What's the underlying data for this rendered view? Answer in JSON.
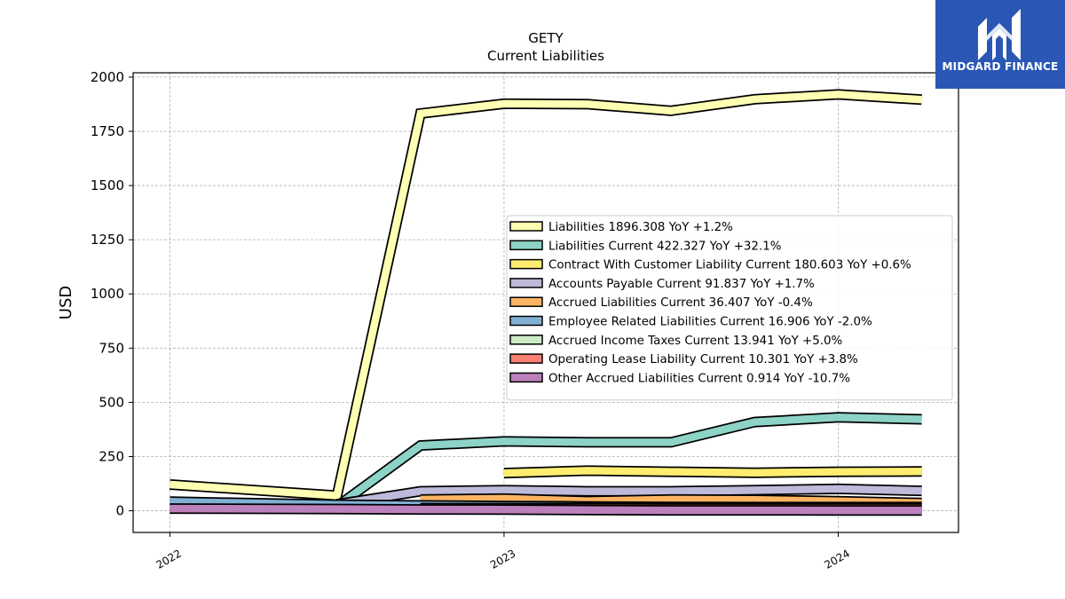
{
  "chart_data": {
    "type": "line",
    "title": "GETY",
    "subtitle": "Current  Liabilities",
    "ylabel": "USD",
    "xlabel": "",
    "ylim": [
      -100,
      2020
    ],
    "xlim": [
      2021.89,
      2024.36
    ],
    "yticks": [
      0,
      250,
      500,
      750,
      1000,
      1250,
      1500,
      1750,
      2000
    ],
    "xticks": [
      2022,
      2023,
      2024
    ],
    "xtick_labels": [
      "2022",
      "2023",
      "2024"
    ],
    "grid": true,
    "legend_placement": "center-right",
    "series": [
      {
        "name": "Liabilities  1896.308 YoY +1.2%",
        "color": "#ffffb3",
        "x": [
          2022.0,
          2022.5,
          2022.75,
          2023.0,
          2023.25,
          2023.5,
          2023.75,
          2024.0,
          2024.25
        ],
        "values": [
          121,
          70,
          1832,
          1877,
          1875,
          1845,
          1898,
          1920,
          1896
        ]
      },
      {
        "name": "Liabilities Current  422.327 YoY +32.1%",
        "color": "#8dd3c7",
        "x": [
          2022.0,
          2022.5,
          2022.75,
          2023.0,
          2023.25,
          2023.5,
          2023.75,
          2024.0,
          2024.25
        ],
        "values": [
          null,
          20,
          301,
          320,
          316,
          316,
          409,
          431,
          422
        ]
      },
      {
        "name": "Contract With Customer Liability Current  180.603 YoY +0.6%",
        "color": "#ffed6f",
        "x": [
          2023.0,
          2023.25,
          2023.5,
          2023.75,
          2024.0,
          2024.25
        ],
        "values": [
          174,
          185,
          180,
          175,
          180,
          181
        ]
      },
      {
        "name": "Accounts Payable Current  91.837 YoY +1.7%",
        "color": "#bebada",
        "x": [
          2022.0,
          2022.5,
          2022.75,
          2023.0,
          2023.25,
          2023.5,
          2023.75,
          2024.0,
          2024.25
        ],
        "values": [
          null,
          30,
          90,
          95,
          90,
          90,
          95,
          101,
          92
        ]
      },
      {
        "name": "Accrued Liabilities Current  36.407 YoY -0.4%",
        "color": "#fdb462",
        "x": [
          2022.75,
          2023.0,
          2023.25,
          2023.5,
          2023.75,
          2024.0,
          2024.25
        ],
        "values": [
          52,
          56,
          45,
          52,
          50,
          44,
          36
        ]
      },
      {
        "name": "Employee Related Liabilities Current  16.906 YoY -2.0%",
        "color": "#80b1d3",
        "x": [
          2022.0,
          2022.5,
          2022.75,
          2023.0,
          2023.25,
          2023.5,
          2023.75,
          2024.0,
          2024.25
        ],
        "values": [
          42,
          28,
          25,
          22,
          20,
          18,
          17,
          17,
          17
        ]
      },
      {
        "name": "Accrued Income Taxes Current  13.941 YoY +5.0%",
        "color": "#ccebc5",
        "x": [
          2022.75,
          2023.0,
          2023.25,
          2023.5,
          2023.75,
          2024.0,
          2024.25
        ],
        "values": [
          8,
          12,
          13,
          14,
          13,
          13,
          14
        ]
      },
      {
        "name": "Operating Lease Liability Current  10.301 YoY +3.8%",
        "color": "#fb8072",
        "x": [
          2022.75,
          2023.0,
          2023.25,
          2023.5,
          2023.75,
          2024.0,
          2024.25
        ],
        "values": [
          12,
          12,
          11,
          10,
          10,
          10,
          10
        ]
      },
      {
        "name": "Other Accrued Liabilities Current  0.914 YoY -10.7%",
        "color": "#bc80bd",
        "x": [
          2022.0,
          2022.5,
          2022.75,
          2023.0,
          2023.25,
          2023.5,
          2023.75,
          2024.0,
          2024.25
        ],
        "values": [
          10,
          8,
          6,
          5,
          3,
          2,
          2,
          1,
          1
        ]
      }
    ]
  },
  "brand": {
    "logo_text": "MIDGARD FINANCE",
    "logo_icon": "midgard-m-logo-icon",
    "logo_bg": "#2a57b5"
  }
}
